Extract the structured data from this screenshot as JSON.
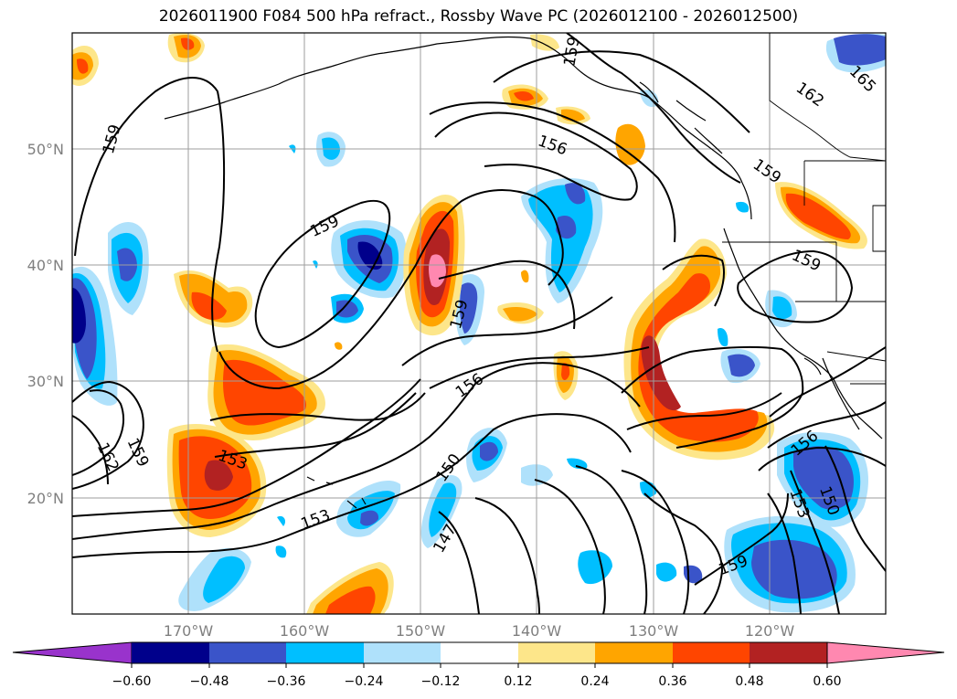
{
  "title": "2026011900 F084 500 hPa refract., Rossby Wave PC (2026012100 - 2026012500)",
  "map": {
    "projection": "PlateCarree",
    "lon_range": [
      -180,
      -110
    ],
    "lat_range": [
      10,
      60
    ],
    "lon_ticks": [
      "170°W",
      "160°W",
      "150°W",
      "140°W",
      "130°W",
      "120°W"
    ],
    "lat_ticks": [
      "50°N",
      "40°N",
      "30°N",
      "20°N"
    ],
    "grid": true,
    "coastlines": true,
    "state_borders": true
  },
  "contours": {
    "color": "#000000",
    "labels": [
      "159",
      "159",
      "156",
      "162",
      "165",
      "159",
      "159",
      "159",
      "156",
      "162",
      "159",
      "153",
      "153",
      "150",
      "147",
      "156",
      "153",
      "150",
      "159"
    ]
  },
  "colorbar": {
    "orientation": "horizontal",
    "extend": "both",
    "tick_labels": [
      "−0.60",
      "−0.48",
      "−0.36",
      "−0.24",
      "−0.12",
      "0.12",
      "0.24",
      "0.36",
      "0.48",
      "0.60"
    ],
    "colors": [
      "#9933cc",
      "#00008b",
      "#3a54c9",
      "#00bfff",
      "#afe1fb",
      "#ffffff",
      "#fde68a",
      "#ffa500",
      "#ff4500",
      "#b22222",
      "#ff88b0"
    ]
  }
}
